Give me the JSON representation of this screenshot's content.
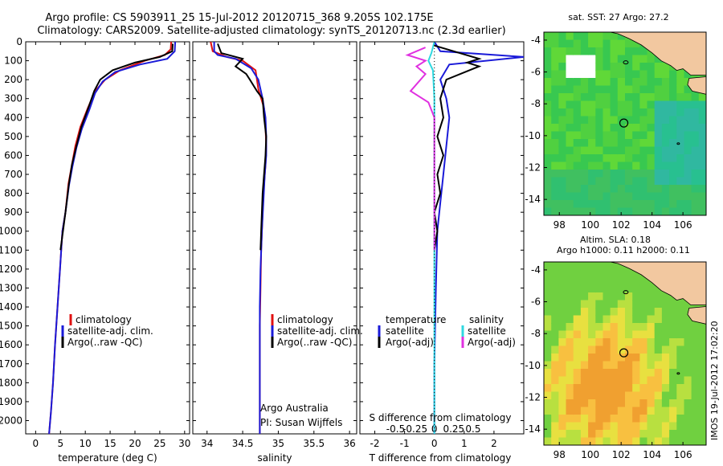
{
  "header": {
    "line1": "Argo profile: CS 5903911_25 15-Jul-2012 20120715_368 9.205S 102.175E",
    "line2": "Climatology: CARS2009. Satellite-adjusted climatology: synTS_20120713.nc (2.3d earlier)"
  },
  "colors": {
    "climatology": "#e01010",
    "satellite": "#1a1ad8",
    "argo": "#000000",
    "sal_satellite": "#30d8e0",
    "sal_argo": "#e030e0"
  },
  "chart_data": [
    {
      "type": "line",
      "id": "temperature",
      "xlabel": "temperature (deg C)",
      "xlim": [
        -2,
        31
      ],
      "ylim": [
        2070,
        0
      ],
      "xticks": [
        0,
        5,
        10,
        15,
        20,
        25,
        30
      ],
      "yticks": [
        0,
        100,
        200,
        300,
        400,
        500,
        600,
        700,
        800,
        900,
        1000,
        1100,
        1200,
        1300,
        1400,
        1500,
        1600,
        1700,
        1800,
        1900,
        2000
      ],
      "legend": [
        "climatology",
        "satellite-adj. clim.",
        "Argo(..raw -QC)"
      ],
      "series": [
        {
          "name": "climatology",
          "color": "climatology",
          "points": [
            [
              27.3,
              0
            ],
            [
              27.2,
              40
            ],
            [
              26,
              70
            ],
            [
              22,
              100
            ],
            [
              17,
              150
            ],
            [
              14,
              200
            ],
            [
              12,
              260
            ],
            [
              10.5,
              350
            ],
            [
              9,
              450
            ],
            [
              8,
              550
            ],
            [
              7.3,
              650
            ],
            [
              6.6,
              750
            ],
            [
              6,
              900
            ],
            [
              5.4,
              1000
            ],
            [
              4.9,
              1200
            ],
            [
              4.4,
              1400
            ],
            [
              3.9,
              1600
            ],
            [
              3.5,
              1800
            ],
            [
              3.1,
              1950
            ],
            [
              2.7,
              2070
            ]
          ]
        },
        {
          "name": "satellite-adj. clim.",
          "color": "satellite",
          "points": [
            [
              28.1,
              0
            ],
            [
              28,
              50
            ],
            [
              26.5,
              90
            ],
            [
              21,
              120
            ],
            [
              16,
              160
            ],
            [
              13.5,
              210
            ],
            [
              12,
              270
            ],
            [
              10.8,
              360
            ],
            [
              9.3,
              460
            ],
            [
              8.2,
              560
            ],
            [
              7.4,
              660
            ],
            [
              6.7,
              760
            ],
            [
              6,
              900
            ],
            [
              5.4,
              1000
            ],
            [
              4.9,
              1200
            ],
            [
              4.4,
              1400
            ],
            [
              3.9,
              1600
            ],
            [
              3.5,
              1800
            ],
            [
              3.1,
              1950
            ],
            [
              2.7,
              2070
            ]
          ]
        },
        {
          "name": "Argo(..raw -QC)",
          "color": "argo",
          "points": [
            [
              27.6,
              10
            ],
            [
              27.5,
              50
            ],
            [
              25,
              80
            ],
            [
              20,
              110
            ],
            [
              15.5,
              150
            ],
            [
              13,
              200
            ],
            [
              11.8,
              260
            ],
            [
              10.6,
              350
            ],
            [
              9.2,
              450
            ],
            [
              8.2,
              550
            ],
            [
              7.3,
              650
            ],
            [
              6.7,
              750
            ],
            [
              6,
              900
            ],
            [
              5.5,
              1000
            ],
            [
              5,
              1100
            ]
          ]
        }
      ]
    },
    {
      "type": "line",
      "id": "salinity",
      "xlabel": "salinity",
      "xlim": [
        33.8,
        36.1
      ],
      "ylim": [
        2070,
        0
      ],
      "xticks": [
        34,
        34.5,
        35,
        35.5,
        36
      ],
      "legend": [
        "climatology",
        "satellite-adj. clim.",
        "Argo(..raw -QC)"
      ],
      "notes": [
        "Argo Australia",
        "PI: Susan Wijffels"
      ],
      "series": [
        {
          "name": "climatology",
          "color": "climatology",
          "points": [
            [
              34.05,
              0
            ],
            [
              34.08,
              50
            ],
            [
              34.28,
              80
            ],
            [
              34.5,
              100
            ],
            [
              34.68,
              150
            ],
            [
              34.72,
              250
            ],
            [
              34.8,
              350
            ],
            [
              34.82,
              450
            ],
            [
              34.83,
              550
            ],
            [
              34.82,
              650
            ],
            [
              34.8,
              750
            ],
            [
              34.78,
              900
            ],
            [
              34.76,
              1100
            ],
            [
              34.75,
              1300
            ],
            [
              34.74,
              1500
            ],
            [
              34.74,
              1700
            ],
            [
              34.74,
              1900
            ],
            [
              34.74,
              2070
            ]
          ]
        },
        {
          "name": "satellite-adj. clim.",
          "color": "satellite",
          "points": [
            [
              34.1,
              0
            ],
            [
              34.1,
              50
            ],
            [
              34.15,
              70
            ],
            [
              34.4,
              90
            ],
            [
              34.62,
              140
            ],
            [
              34.72,
              200
            ],
            [
              34.78,
              300
            ],
            [
              34.82,
              400
            ],
            [
              34.83,
              500
            ],
            [
              34.83,
              600
            ],
            [
              34.81,
              700
            ],
            [
              34.79,
              850
            ],
            [
              34.77,
              1000
            ],
            [
              34.75,
              1200
            ],
            [
              34.74,
              1400
            ],
            [
              34.74,
              1600
            ],
            [
              34.74,
              1800
            ],
            [
              34.74,
              2070
            ]
          ]
        },
        {
          "name": "Argo(..raw -QC)",
          "color": "argo",
          "points": [
            [
              34.15,
              10
            ],
            [
              34.2,
              60
            ],
            [
              34.5,
              90
            ],
            [
              34.4,
              130
            ],
            [
              34.55,
              170
            ],
            [
              34.6,
              200
            ],
            [
              34.7,
              260
            ],
            [
              34.78,
              300
            ],
            [
              34.8,
              400
            ],
            [
              34.83,
              500
            ],
            [
              34.82,
              600
            ],
            [
              34.8,
              700
            ],
            [
              34.78,
              800
            ],
            [
              34.77,
              900
            ],
            [
              34.76,
              1000
            ],
            [
              34.75,
              1100
            ]
          ]
        }
      ]
    },
    {
      "type": "line",
      "id": "difference",
      "xlabel": "T difference from climatology",
      "xlabel2": "S difference from climatology",
      "xlim": [
        -2.5,
        3
      ],
      "ylim": [
        2070,
        0
      ],
      "xticks": [
        -2,
        -1,
        0,
        1,
        2
      ],
      "xticks2": [
        "-0.5",
        "-0.25",
        "0",
        "0.25",
        "0.5"
      ],
      "legend_left_title": "temperature",
      "legend_right_title": "salinity",
      "legend_left": [
        "satellite",
        "Argo(-adj)"
      ],
      "legend_right": [
        "satellite",
        "Argo(-adj)"
      ],
      "series": [
        {
          "name": "T satellite",
          "color": "satellite",
          "points": [
            [
              0,
              0
            ],
            [
              0.2,
              50
            ],
            [
              3,
              80
            ],
            [
              0.5,
              120
            ],
            [
              0.2,
              200
            ],
            [
              0.4,
              300
            ],
            [
              0.5,
              400
            ],
            [
              0.4,
              550
            ],
            [
              0.3,
              700
            ],
            [
              0.2,
              850
            ],
            [
              0.1,
              1000
            ],
            [
              0.05,
              1300
            ],
            [
              0,
              1700
            ],
            [
              0,
              2070
            ]
          ]
        },
        {
          "name": "T Argo(-adj)",
          "color": "argo",
          "points": [
            [
              0,
              20
            ],
            [
              1.5,
              90
            ],
            [
              1.1,
              110
            ],
            [
              1.5,
              130
            ],
            [
              0.4,
              200
            ],
            [
              0.2,
              300
            ],
            [
              0.3,
              400
            ],
            [
              0.1,
              500
            ],
            [
              0.3,
              600
            ],
            [
              0.1,
              700
            ],
            [
              0.2,
              800
            ],
            [
              0,
              900
            ],
            [
              0.1,
              1000
            ],
            [
              0,
              1100
            ]
          ]
        },
        {
          "name": "S satellite",
          "color": "sal_satellite",
          "points": [
            [
              0,
              0
            ],
            [
              -0.1,
              60
            ],
            [
              -0.2,
              100
            ],
            [
              -0.05,
              150
            ],
            [
              0,
              300
            ],
            [
              0,
              500
            ],
            [
              0,
              800
            ],
            [
              0,
              1200
            ],
            [
              0,
              1600
            ],
            [
              0,
              2070
            ]
          ]
        },
        {
          "name": "S Argo(-adj)",
          "color": "sal_argo",
          "points": [
            [
              -0.3,
              30
            ],
            [
              -0.9,
              70
            ],
            [
              -0.3,
              100
            ],
            [
              -0.6,
              130
            ],
            [
              -0.3,
              170
            ],
            [
              -0.8,
              260
            ],
            [
              -0.2,
              320
            ],
            [
              0,
              400
            ],
            [
              0,
              600
            ],
            [
              0,
              900
            ],
            [
              0,
              1100
            ]
          ]
        }
      ]
    },
    {
      "type": "heatmap",
      "id": "sst_map",
      "title": "sat. SST: 27 Argo: 27.2",
      "xlim": [
        97,
        107.5
      ],
      "ylim": [
        -15,
        -3.5
      ],
      "xticks": [
        98,
        100,
        102,
        104,
        106
      ],
      "yticks": [
        -4,
        -6,
        -8,
        -10,
        -12,
        -14
      ],
      "argo_position": [
        102.175,
        -9.205
      ]
    },
    {
      "type": "heatmap",
      "id": "sla_map",
      "title": "Altim. SLA: 0.18",
      "subtitle": "Argo h1000: 0.11 h2000: 0.11",
      "xlim": [
        97,
        107.5
      ],
      "ylim": [
        -15,
        -3.5
      ],
      "xticks": [
        98,
        100,
        102,
        104,
        106
      ],
      "yticks": [
        -4,
        -6,
        -8,
        -10,
        -12,
        -14
      ],
      "argo_position": [
        102.175,
        -9.205
      ]
    }
  ],
  "stamp": "IMOS 19-Jul-2012 17:02:20"
}
